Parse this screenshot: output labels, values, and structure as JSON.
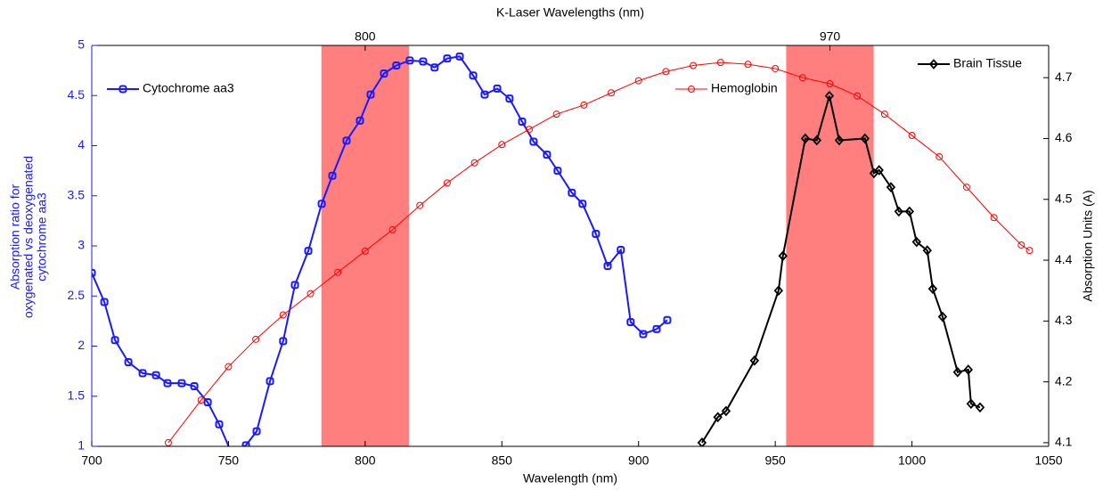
{
  "chart_data": {
    "type": "line",
    "title": "K-Laser Wavelengths (nm)",
    "xlabel": "Wavelength (nm)",
    "ylabel": [
      "Absorption ratio for",
      "oxygenated vs deoxygenated",
      "cytochrome aa3"
    ],
    "y2label": "Absorption Units (A)",
    "xlim": [
      700,
      1050
    ],
    "xticks": [
      700,
      750,
      800,
      850,
      900,
      950,
      1000,
      1050
    ],
    "ylim": [
      1,
      5
    ],
    "yticks": [
      1,
      1.5,
      2,
      2.5,
      3,
      3.5,
      4,
      4.5,
      5
    ],
    "y2lim": [
      4.094,
      4.753
    ],
    "y2ticks": [
      4.1,
      4.2,
      4.3,
      4.4,
      4.5,
      4.6,
      4.7
    ],
    "top_ticks": [
      800,
      970
    ],
    "bands": [
      [
        784,
        816
      ],
      [
        954,
        986
      ]
    ],
    "band_color": "#ff7f7f",
    "series": [
      {
        "name": "Cytochrome aa3",
        "color": "#1a1aff",
        "marker": "square",
        "x": [
          700,
          704.6,
          708.5,
          713.4,
          718.6,
          723.5,
          727.7,
          732.9,
          737.5,
          742.4,
          746.6,
          751,
          756.4,
          760.3,
          765.2,
          770,
          774.3,
          779.2,
          784.1,
          788,
          793.2,
          798.1,
          802,
          806.9,
          811.4,
          816.3,
          821.2,
          825.4,
          830,
          834.6,
          839.5,
          843.7,
          848.3,
          852.8,
          857.4,
          861.6,
          866.5,
          870.4,
          875.6,
          879.5,
          884.4,
          888.7,
          893.5,
          897.1,
          901.7,
          906.6,
          910.5
        ],
        "values": [
          2.73,
          2.44,
          2.06,
          1.84,
          1.73,
          1.71,
          1.63,
          1.63,
          1.6,
          1.44,
          1.22,
          0.94,
          1.01,
          1.15,
          1.65,
          2.05,
          2.61,
          2.95,
          3.42,
          3.7,
          4.05,
          4.25,
          4.51,
          4.72,
          4.8,
          4.85,
          4.84,
          4.78,
          4.87,
          4.89,
          4.7,
          4.51,
          4.57,
          4.47,
          4.24,
          4.04,
          3.91,
          3.75,
          3.53,
          3.42,
          3.12,
          2.8,
          2.96,
          2.24,
          2.12,
          2.17,
          2.26
        ]
      },
      {
        "name": "Hemoglobin",
        "color": "#ff0000",
        "marker": "circle",
        "axis": "y2",
        "x": [
          728,
          740,
          750,
          760,
          770,
          780,
          790,
          800,
          810,
          820,
          830,
          840,
          850,
          860,
          870,
          880,
          890,
          900,
          910,
          920,
          930,
          940,
          950,
          960,
          970,
          980,
          990,
          1000,
          1010,
          1020,
          1030,
          1040,
          1043
        ],
        "values": [
          4.1,
          4.17,
          4.225,
          4.27,
          4.31,
          4.345,
          4.38,
          4.415,
          4.45,
          4.49,
          4.527,
          4.56,
          4.59,
          4.615,
          4.64,
          4.655,
          4.675,
          4.695,
          4.71,
          4.72,
          4.725,
          4.722,
          4.715,
          4.7,
          4.69,
          4.67,
          4.64,
          4.605,
          4.57,
          4.52,
          4.47,
          4.425,
          4.416
        ]
      },
      {
        "name": "Brain Tissue",
        "color": "#000000",
        "marker": "diamond",
        "axis": "y2",
        "x": [
          923.2,
          929,
          932,
          942.4,
          951.2,
          952.8,
          961,
          965.2,
          969.8,
          973.4,
          982.8,
          986.1,
          988,
          992.3,
          995.2,
          999.1,
          1001.7,
          1005.6,
          1007.6,
          1011.2,
          1016.7,
          1020.6,
          1021.6,
          1024.9
        ],
        "values": [
          4.1,
          4.142,
          4.152,
          4.235,
          4.35,
          4.407,
          4.6,
          4.597,
          4.67,
          4.597,
          4.6,
          4.543,
          4.548,
          4.52,
          4.48,
          4.48,
          4.43,
          4.416,
          4.353,
          4.307,
          4.216,
          4.22,
          4.164,
          4.158
        ]
      }
    ]
  }
}
